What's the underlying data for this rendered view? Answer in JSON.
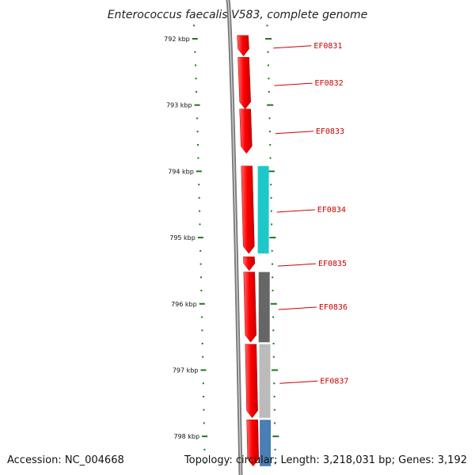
{
  "header": {
    "title": "Enterococcus faecalis V583, complete genome"
  },
  "footer": {
    "accession": "Accession: NC_004668",
    "summary": "Topology: circular; Length: 3,218,031 bp; Genes: 3,192"
  },
  "colors": {
    "backbone": "#7a7a7a",
    "gene": "#ff0000",
    "ticks": "#1a7a1a",
    "label": "#cc0000",
    "cog_cyan": "#1fc8c8",
    "cog_dark": "#666666",
    "cog_light": "#bbbbbb",
    "cog_blue": "#4a7fb5"
  },
  "scale": {
    "unit": "kbp",
    "ticks": [
      {
        "kbp": 792,
        "label": "792 kbp"
      },
      {
        "kbp": 793,
        "label": "793 kbp"
      },
      {
        "kbp": 794,
        "label": "794 kbp"
      },
      {
        "kbp": 795,
        "label": "795 kbp"
      },
      {
        "kbp": 796,
        "label": "796 kbp"
      },
      {
        "kbp": 797,
        "label": "797 kbp"
      },
      {
        "kbp": 798,
        "label": "798 kbp"
      }
    ]
  },
  "genes": [
    {
      "name": "EF0831",
      "start_kbp": 791.95,
      "end_kbp": 792.26
    },
    {
      "name": "EF0832",
      "start_kbp": 792.28,
      "end_kbp": 793.06
    },
    {
      "name": "EF0833",
      "start_kbp": 793.06,
      "end_kbp": 793.73
    },
    {
      "name": "EF0834",
      "start_kbp": 793.92,
      "end_kbp": 795.24
    },
    {
      "name": "EF0835",
      "start_kbp": 795.29,
      "end_kbp": 795.5
    },
    {
      "name": "EF0836",
      "start_kbp": 795.52,
      "end_kbp": 796.58
    },
    {
      "name": "EF0837",
      "start_kbp": 796.61,
      "end_kbp": 797.72
    },
    {
      "name": "",
      "start_kbp": 797.75,
      "end_kbp": 798.45
    }
  ],
  "cog_blocks": [
    {
      "color": "cog_cyan",
      "start_kbp": 793.92,
      "end_kbp": 795.24
    },
    {
      "color": "cog_dark",
      "start_kbp": 795.52,
      "end_kbp": 796.58
    },
    {
      "color": "cog_light",
      "start_kbp": 796.61,
      "end_kbp": 797.72
    },
    {
      "color": "cog_blue",
      "start_kbp": 797.75,
      "end_kbp": 798.45
    }
  ]
}
